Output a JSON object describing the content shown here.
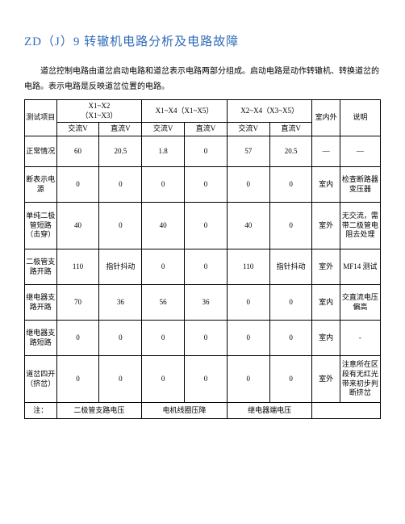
{
  "title": "ZD（J）9 转辙机电路分析及电路故障",
  "description": "道岔控制电路由道岔启动电路和道岔表示电路两部分组成。启动电路是动作转辙机、转换道岔的电路。表示电路是反映道岔位置的电路。",
  "header": {
    "col_item": "测试项目",
    "group1_top": "X1~X2",
    "group1_sub": "（X1~X3）",
    "group2": "X1~X4（X1~X5）",
    "group3": "X2~X4（X3~X5）",
    "ac": "交流V",
    "dc": "直流V",
    "ac_s": "交流V",
    "dc_s": "直流V",
    "inout": "室内外",
    "note": "说明"
  },
  "rows": [
    {
      "label": "正常情况",
      "v": [
        "60",
        "20.5",
        "1.8",
        "0",
        "57",
        "20.5"
      ],
      "io": "—",
      "note": "—",
      "h": "tall"
    },
    {
      "label": "断表示电源",
      "v": [
        "0",
        "0",
        "0",
        "0",
        "0",
        "0"
      ],
      "io": "室内",
      "note": "检查断路器变压器",
      "h": "mid"
    },
    {
      "label": "单纯二极管短路（击穿）",
      "v": [
        "40",
        "0",
        "40",
        "0",
        "40",
        "0"
      ],
      "io": "室外",
      "note": "无交流，需带二极管电阻去处理",
      "h": "taller"
    },
    {
      "label": "二极管支路开路",
      "v": [
        "110",
        "指针抖动",
        "0",
        "0",
        "110",
        "指针抖动"
      ],
      "io": "室外",
      "note": "MF14 测试",
      "h": "mid"
    },
    {
      "label": "继电器支路开路",
      "v": [
        "70",
        "36",
        "56",
        "36",
        "0",
        "0"
      ],
      "io": "室内",
      "note": "交直流电压偏高",
      "h": "mid"
    },
    {
      "label": "继电器支路短路",
      "v": [
        "0",
        "0",
        "0",
        "0",
        "0",
        "0"
      ],
      "io": "室内",
      "note": "-",
      "h": "mid"
    },
    {
      "label": "道岔四开（挤岔）",
      "v": [
        "0",
        "0",
        "0",
        "0",
        "0",
        "0"
      ],
      "io": "室外",
      "note": "注意所在区段有无红光带来初步判断挤岔",
      "h": "taller"
    }
  ],
  "footer": {
    "label": "注：",
    "f1": "二极管支路电压",
    "f2": "电机线圈压降",
    "f3": "继电器端电压",
    "f4": ""
  }
}
